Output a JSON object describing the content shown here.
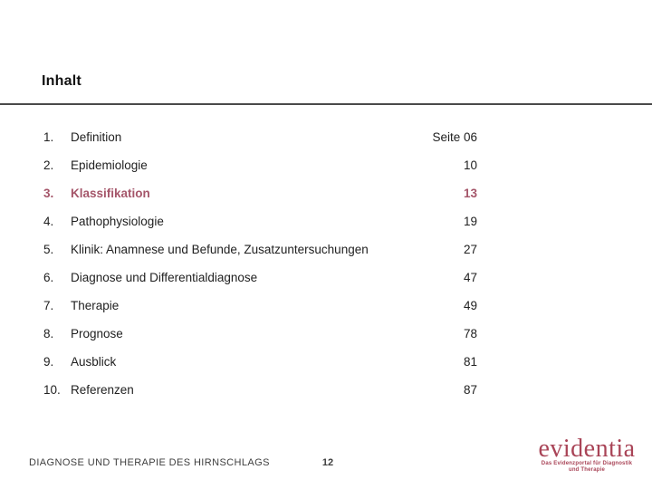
{
  "title": "Inhalt",
  "toc": {
    "items": [
      {
        "num": "1.",
        "label": "Definition",
        "page": "Seite 06",
        "active": false
      },
      {
        "num": "2.",
        "label": "Epidemiologie",
        "page": "10",
        "active": false
      },
      {
        "num": "3.",
        "label": "Klassifikation",
        "page": "13",
        "active": true
      },
      {
        "num": "4.",
        "label": "Pathophysiologie",
        "page": "19",
        "active": false
      },
      {
        "num": "5.",
        "label": "Klinik: Anamnese und Befunde, Zusatzuntersuchungen",
        "page": "27",
        "active": false
      },
      {
        "num": "6.",
        "label": "Diagnose und Differentialdiagnose",
        "page": "47",
        "active": false
      },
      {
        "num": "7.",
        "label": "Therapie",
        "page": "49",
        "active": false
      },
      {
        "num": "8.",
        "label": "Prognose",
        "page": "78",
        "active": false
      },
      {
        "num": "9.",
        "label": "Ausblick",
        "page": "81",
        "active": false
      },
      {
        "num": "10.",
        "label": "Referenzen",
        "page": "87",
        "active": false
      }
    ]
  },
  "footer": {
    "deck_title": "DIAGNOSE UND THERAPIE DES HIRNSCHLAGS",
    "page_number": "12"
  },
  "logo": {
    "wordmark": "evidentia",
    "tagline_line1": "Das Evidenzportal für Diagnostik",
    "tagline_line2": "und Therapie"
  },
  "colors": {
    "accent": "#a5566a",
    "logo": "#a94457",
    "rule": "#4a4a4a"
  }
}
